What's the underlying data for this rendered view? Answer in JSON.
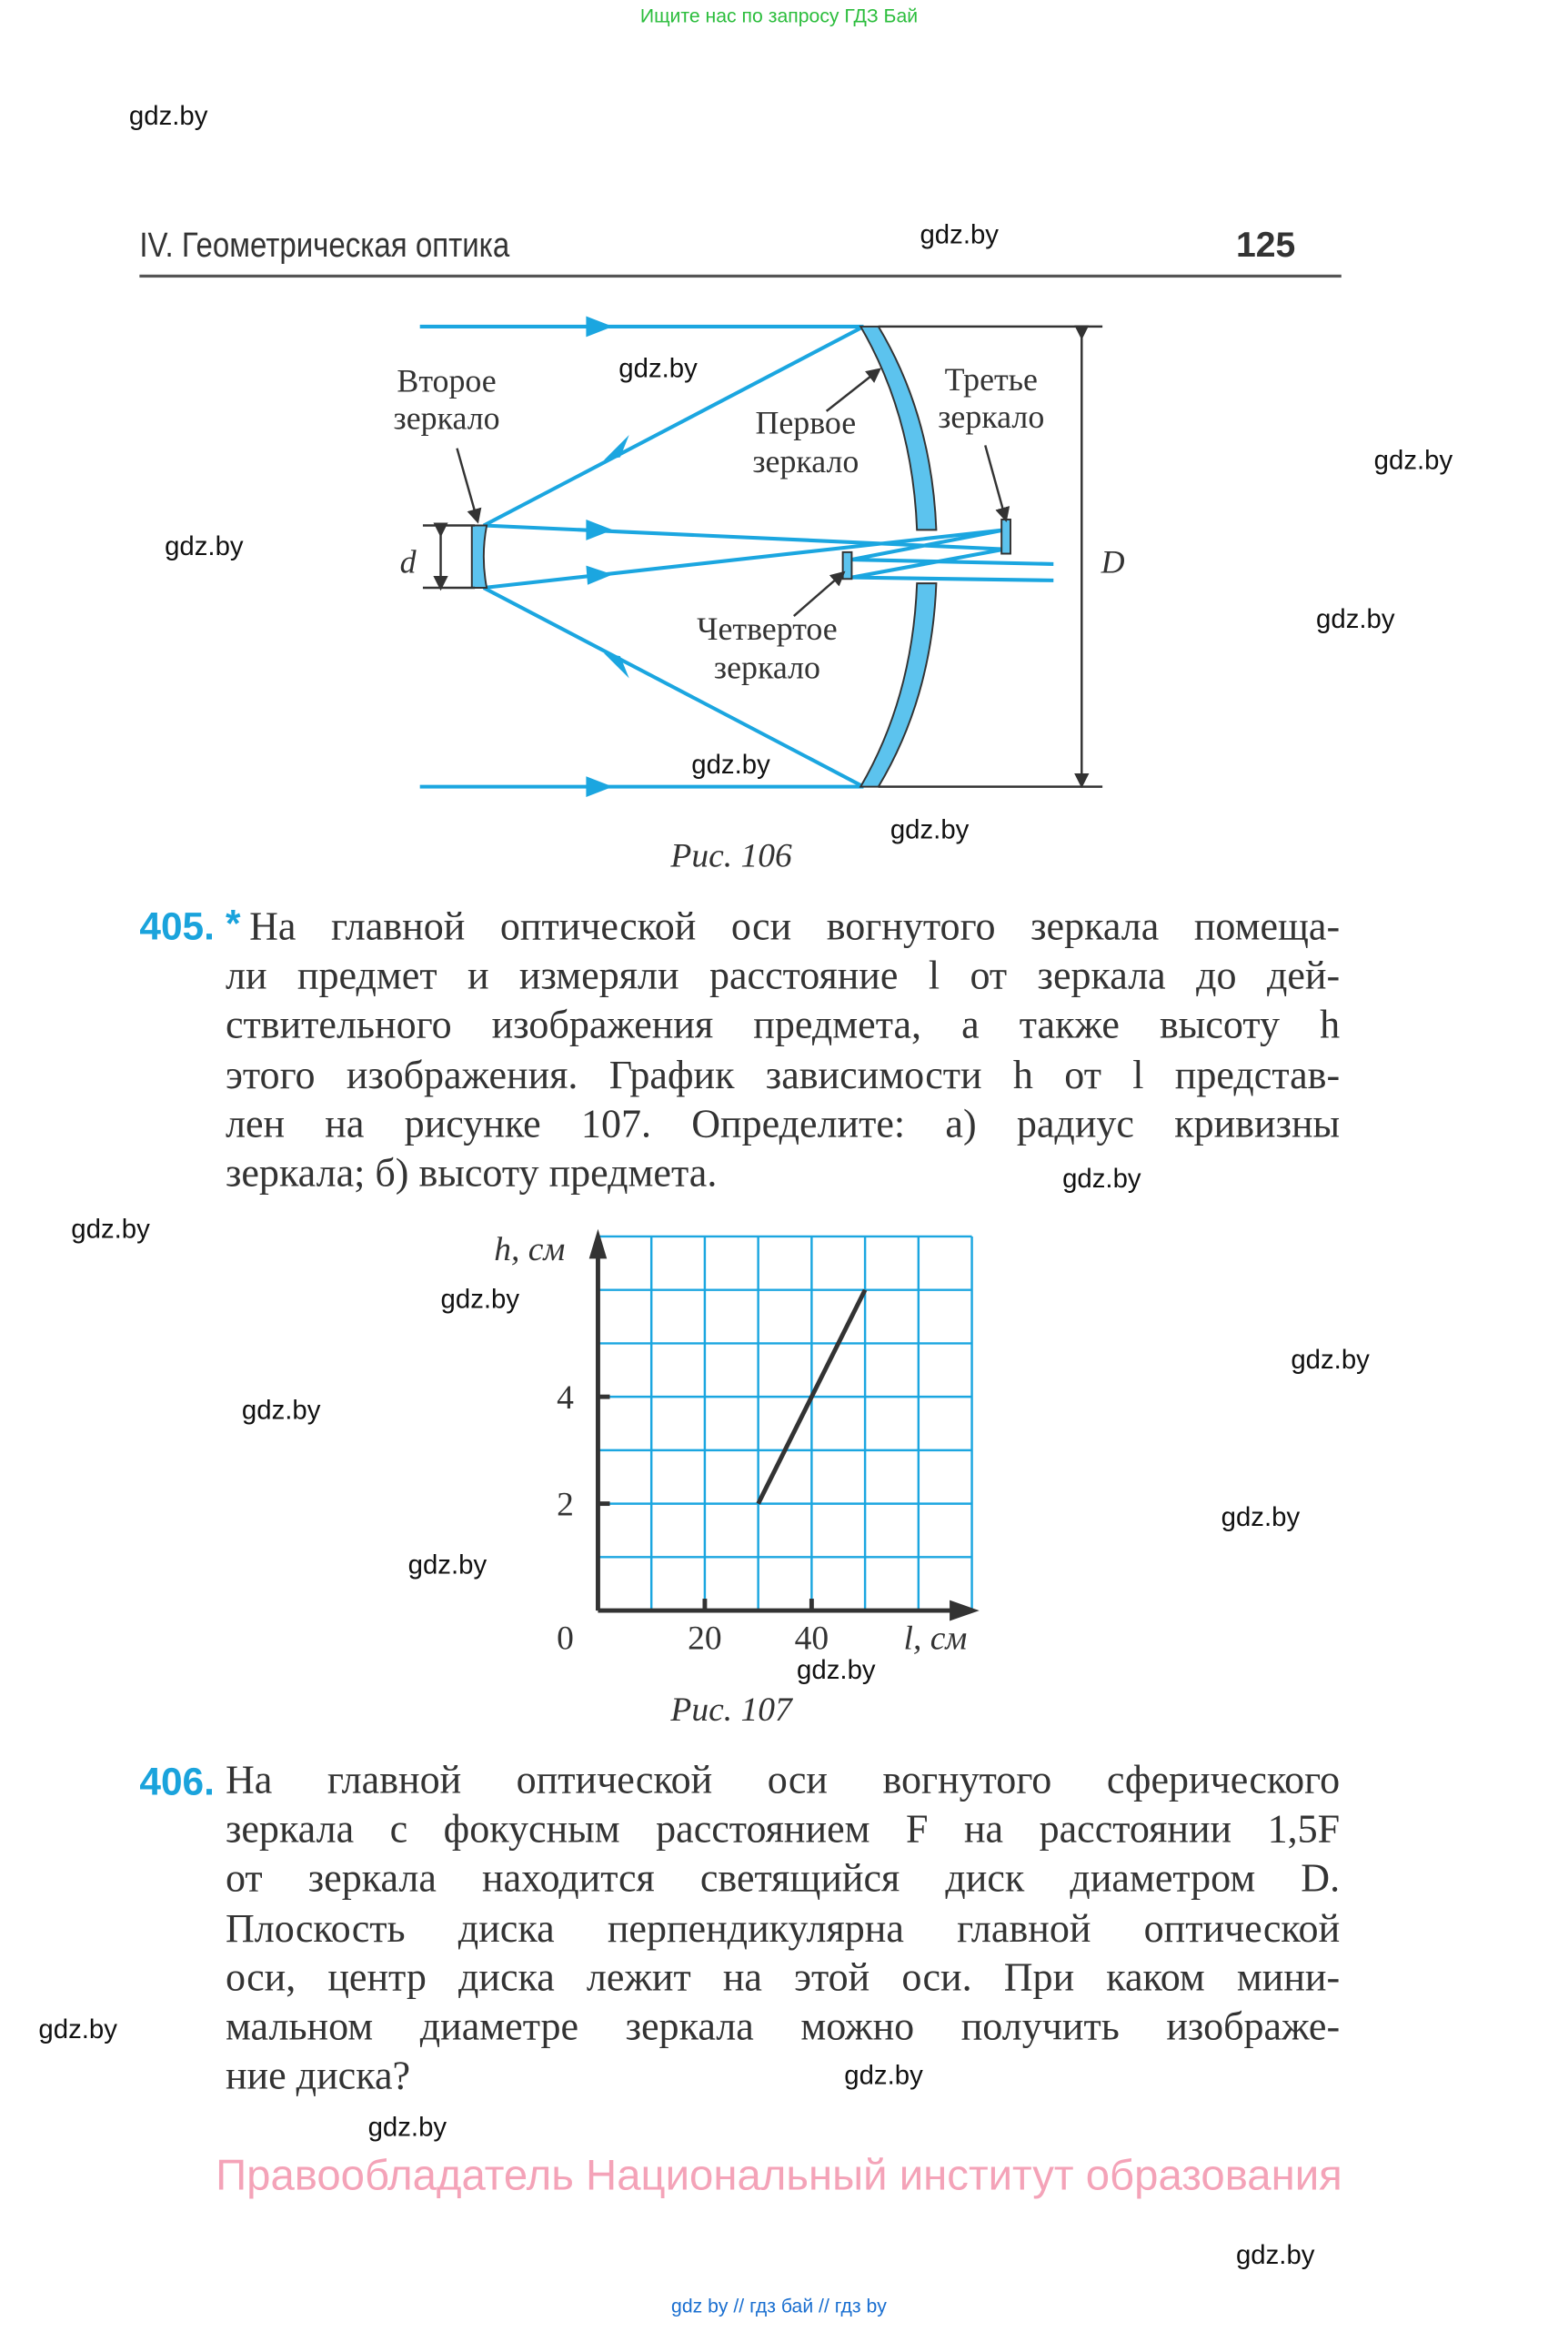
{
  "banner": "Ищите нас по запросу ГДЗ Бай",
  "header": {
    "chapter": "IV. Геометрическая оптика",
    "page_number": "125"
  },
  "figure106": {
    "caption": "Рис. 106",
    "labels": {
      "second_mirror": [
        "Второе",
        "зеркало"
      ],
      "first_mirror": [
        "Первое",
        "зеркало"
      ],
      "third_mirror": [
        "Третье",
        "зеркало"
      ],
      "fourth_mirror": [
        "Четвертое",
        "зеркало"
      ],
      "d": "d",
      "D": "D"
    },
    "colors": {
      "ray": "#1ba6e0",
      "mirror_fill": "#5cc3ee"
    }
  },
  "problem405": {
    "number": "405.",
    "star": "*",
    "lines": [
      "На главной оптической оси вогнутого зеркала помеща-",
      "ли предмет и измеряли расстояние l от зеркала до дей-",
      "ствительного изображения предмета, а также высоту h",
      "этого изображения. График зависимости h от l представ-",
      "лен на рисунке 107. Определите: а) радиус кривизны",
      "зеркала; б) высоту предмета."
    ]
  },
  "chart_data": {
    "type": "line",
    "caption": "Рис. 107",
    "xlabel": "l, см",
    "ylabel": "h, см",
    "xlim": [
      0,
      70
    ],
    "ylim": [
      0,
      7
    ],
    "x_ticks": [
      "0",
      "20",
      "40"
    ],
    "y_ticks": [
      "2",
      "4"
    ],
    "grid": true,
    "grid_step": {
      "x": 10,
      "y": 1
    },
    "grid_color": "#1ba6e0",
    "series": [
      {
        "x": [
          30,
          50
        ],
        "y": [
          2,
          6
        ]
      }
    ]
  },
  "problem406": {
    "number": "406.",
    "lines": [
      "На главной оптической оси вогнутого сферического",
      "зеркала с фокусным расстоянием F на расстоянии 1,5F",
      "от зеркала находится светящийся диск диаметром D.",
      "Плоскость диска перпендикулярна главной оптической",
      "оси, центр диска лежит на этой оси. При каком мини-",
      "мальном диаметре зеркала можно получить изображе-",
      "ние диска?"
    ]
  },
  "footer": "Правообладатель Национальный институт образования",
  "bottom_links": "gdz by  //  гдз бай  //  гдз by",
  "watermark": "gdz.by"
}
